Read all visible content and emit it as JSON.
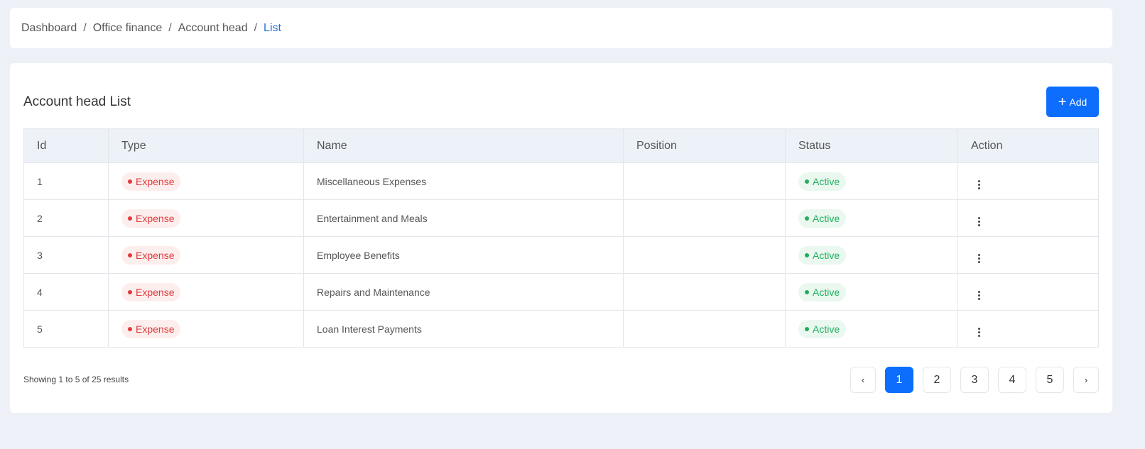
{
  "breadcrumb": [
    "Dashboard",
    "Office finance",
    "Account head"
  ],
  "breadcrumb_current": "List",
  "title": "Account head List",
  "add_label": "Add",
  "columns": [
    "Id",
    "Type",
    "Name",
    "Position",
    "Status",
    "Action"
  ],
  "rows": [
    {
      "id": "1",
      "type": "Expense",
      "name": "Miscellaneous Expenses",
      "position": "",
      "status": "Active"
    },
    {
      "id": "2",
      "type": "Expense",
      "name": "Entertainment and Meals",
      "position": "",
      "status": "Active"
    },
    {
      "id": "3",
      "type": "Expense",
      "name": "Employee Benefits",
      "position": "",
      "status": "Active"
    },
    {
      "id": "4",
      "type": "Expense",
      "name": "Repairs and Maintenance",
      "position": "",
      "status": "Active"
    },
    {
      "id": "5",
      "type": "Expense",
      "name": "Loan Interest Payments",
      "position": "",
      "status": "Active"
    }
  ],
  "showing": "Showing 1 to 5 of 25 results",
  "pagination": {
    "prev": "‹",
    "pages": [
      "1",
      "2",
      "3",
      "4",
      "5"
    ],
    "current": "1",
    "next": "›"
  },
  "colors": {
    "accent": "#0d6efd",
    "expense": "#e03a3a",
    "active": "#1fae5b"
  }
}
